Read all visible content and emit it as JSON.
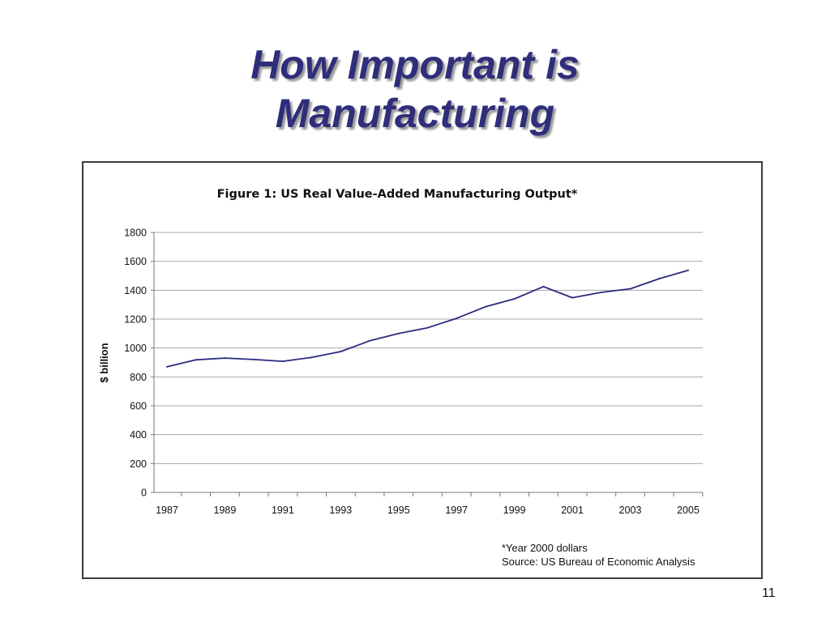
{
  "slide": {
    "title_line1": "How Important is",
    "title_line2": "Manufacturing",
    "page_number": "11"
  },
  "footnote": {
    "line1": "*Year 2000 dollars",
    "line2": "Source: US Bureau of Economic Analysis"
  },
  "colors": {
    "title": "#2e2e7a",
    "series_line": "#2b2b80",
    "grid": "#a8a8a8",
    "frame": "#3c3c3c"
  },
  "chart_data": {
    "type": "line",
    "title": "Figure 1: US Real Value-Added Manufacturing Output*",
    "xlabel": "",
    "ylabel": "$ billion",
    "ylim": [
      0,
      1800
    ],
    "yticks": [
      "0",
      "200",
      "400",
      "600",
      "800",
      "1000",
      "1200",
      "1400",
      "1600",
      "1800"
    ],
    "xlim": [
      1987,
      2005
    ],
    "xticks": [
      "1987",
      "1989",
      "1991",
      "1993",
      "1995",
      "1997",
      "1999",
      "2001",
      "2003",
      "2005"
    ],
    "grid": true,
    "legend": "none",
    "series": [
      {
        "x": [
          1987,
          1988,
          1989,
          1990,
          1991,
          1992,
          1993,
          1994,
          1995,
          1996,
          1997,
          1998,
          1999,
          2000,
          2001,
          2002,
          2003,
          2004,
          2005
        ],
        "values": [
          870,
          918,
          930,
          920,
          908,
          935,
          975,
          1050,
          1100,
          1140,
          1205,
          1285,
          1340,
          1425,
          1348,
          1385,
          1410,
          1480,
          1538
        ]
      }
    ]
  }
}
